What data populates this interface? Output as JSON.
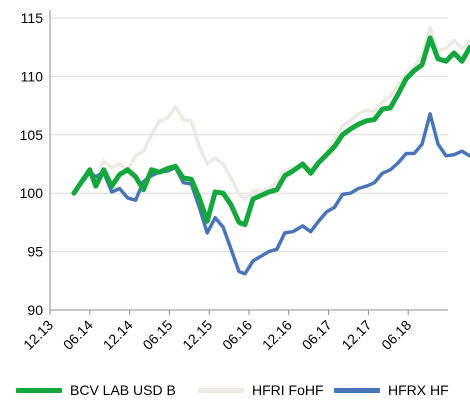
{
  "chart_data": {
    "type": "line",
    "x_tick_labels": [
      "12.13",
      "06.14",
      "12.14",
      "06.15",
      "12.15",
      "06.16",
      "12.16",
      "06.17",
      "12.17",
      "06.18"
    ],
    "yticks": [
      90,
      95,
      100,
      105,
      110,
      115
    ],
    "ylim": [
      90,
      115
    ],
    "grid": "horizontal",
    "legend_position": "bottom",
    "series": [
      {
        "name": "BCV LAB USD B",
        "color": "#14a83c",
        "points": [
          [
            0.6,
            100.0
          ],
          [
            0.8,
            101.0
          ],
          [
            1.0,
            102.0
          ],
          [
            1.15,
            100.6
          ],
          [
            1.35,
            102.0
          ],
          [
            1.55,
            100.6
          ],
          [
            1.75,
            101.6
          ],
          [
            1.95,
            102.0
          ],
          [
            2.15,
            101.4
          ],
          [
            2.35,
            100.3
          ],
          [
            2.55,
            102.0
          ],
          [
            2.75,
            101.8
          ],
          [
            2.95,
            102.1
          ],
          [
            3.15,
            102.3
          ],
          [
            3.35,
            101.3
          ],
          [
            3.55,
            101.2
          ],
          [
            3.75,
            99.6
          ],
          [
            3.95,
            97.6
          ],
          [
            4.15,
            100.1
          ],
          [
            4.35,
            100.0
          ],
          [
            4.55,
            99.0
          ],
          [
            4.75,
            97.5
          ],
          [
            4.9,
            97.3
          ],
          [
            5.1,
            99.5
          ],
          [
            5.3,
            99.8
          ],
          [
            5.5,
            100.1
          ],
          [
            5.7,
            100.3
          ],
          [
            5.9,
            101.5
          ],
          [
            6.1,
            101.9
          ],
          [
            6.35,
            102.5
          ],
          [
            6.55,
            101.7
          ],
          [
            6.75,
            102.6
          ],
          [
            6.95,
            103.3
          ],
          [
            7.15,
            104.0
          ],
          [
            7.35,
            105.0
          ],
          [
            7.55,
            105.5
          ],
          [
            7.75,
            105.9
          ],
          [
            7.95,
            106.2
          ],
          [
            8.15,
            106.3
          ],
          [
            8.35,
            107.2
          ],
          [
            8.55,
            107.3
          ],
          [
            8.75,
            108.5
          ],
          [
            8.95,
            109.8
          ],
          [
            9.15,
            110.5
          ],
          [
            9.35,
            111.0
          ],
          [
            9.55,
            113.3
          ],
          [
            9.75,
            111.5
          ],
          [
            9.95,
            111.3
          ],
          [
            10.15,
            112.0
          ],
          [
            10.35,
            111.3
          ],
          [
            10.55,
            112.5
          ]
        ]
      },
      {
        "name": "HFRI FoHF",
        "color": "#ebebe3",
        "points": [
          [
            0.6,
            100.0
          ],
          [
            0.8,
            101.0
          ],
          [
            1.0,
            101.8
          ],
          [
            1.15,
            101.2
          ],
          [
            1.35,
            102.8
          ],
          [
            1.55,
            102.2
          ],
          [
            1.75,
            102.5
          ],
          [
            1.95,
            102.0
          ],
          [
            2.15,
            103.2
          ],
          [
            2.35,
            103.6
          ],
          [
            2.55,
            105.0
          ],
          [
            2.75,
            106.2
          ],
          [
            2.95,
            106.4
          ],
          [
            3.15,
            107.4
          ],
          [
            3.35,
            106.3
          ],
          [
            3.55,
            106.2
          ],
          [
            3.75,
            104.0
          ],
          [
            3.95,
            102.5
          ],
          [
            4.15,
            103.0
          ],
          [
            4.35,
            102.5
          ],
          [
            4.55,
            101.3
          ],
          [
            4.75,
            99.9
          ],
          [
            4.9,
            99.5
          ],
          [
            5.1,
            100.2
          ],
          [
            5.3,
            100.2
          ],
          [
            5.5,
            100.4
          ],
          [
            5.7,
            101.0
          ],
          [
            5.9,
            101.9
          ],
          [
            6.1,
            102.2
          ],
          [
            6.35,
            102.2
          ],
          [
            6.55,
            102.2
          ],
          [
            6.75,
            102.6
          ],
          [
            6.95,
            103.5
          ],
          [
            7.15,
            104.6
          ],
          [
            7.35,
            105.8
          ],
          [
            7.55,
            106.2
          ],
          [
            7.75,
            106.8
          ],
          [
            7.95,
            107.1
          ],
          [
            8.15,
            107.0
          ],
          [
            8.35,
            107.8
          ],
          [
            8.55,
            108.3
          ],
          [
            8.75,
            109.3
          ],
          [
            8.95,
            110.2
          ],
          [
            9.15,
            110.8
          ],
          [
            9.35,
            111.8
          ],
          [
            9.55,
            114.2
          ],
          [
            9.75,
            112.2
          ],
          [
            9.95,
            112.4
          ],
          [
            10.15,
            113.1
          ],
          [
            10.35,
            112.4
          ],
          [
            10.55,
            113.0
          ]
        ]
      },
      {
        "name": "HFRX HF",
        "color": "#4a74b8",
        "points": [
          [
            0.6,
            100.0
          ],
          [
            0.8,
            100.9
          ],
          [
            1.0,
            101.8
          ],
          [
            1.15,
            101.4
          ],
          [
            1.35,
            101.8
          ],
          [
            1.55,
            100.1
          ],
          [
            1.75,
            100.4
          ],
          [
            1.95,
            99.6
          ],
          [
            2.15,
            99.4
          ],
          [
            2.35,
            101.0
          ],
          [
            2.55,
            101.5
          ],
          [
            2.75,
            101.8
          ],
          [
            2.95,
            101.9
          ],
          [
            3.15,
            102.2
          ],
          [
            3.35,
            100.9
          ],
          [
            3.55,
            100.8
          ],
          [
            3.75,
            98.8
          ],
          [
            3.95,
            96.6
          ],
          [
            4.15,
            97.9
          ],
          [
            4.35,
            97.1
          ],
          [
            4.55,
            95.2
          ],
          [
            4.75,
            93.3
          ],
          [
            4.9,
            93.1
          ],
          [
            5.1,
            94.2
          ],
          [
            5.3,
            94.6
          ],
          [
            5.5,
            95.0
          ],
          [
            5.7,
            95.2
          ],
          [
            5.9,
            96.6
          ],
          [
            6.1,
            96.7
          ],
          [
            6.35,
            97.2
          ],
          [
            6.55,
            96.7
          ],
          [
            6.75,
            97.6
          ],
          [
            6.95,
            98.4
          ],
          [
            7.15,
            98.8
          ],
          [
            7.35,
            99.9
          ],
          [
            7.55,
            100.0
          ],
          [
            7.75,
            100.4
          ],
          [
            7.95,
            100.6
          ],
          [
            8.15,
            100.9
          ],
          [
            8.35,
            101.7
          ],
          [
            8.55,
            102.0
          ],
          [
            8.75,
            102.6
          ],
          [
            8.95,
            103.4
          ],
          [
            9.15,
            103.4
          ],
          [
            9.35,
            104.2
          ],
          [
            9.55,
            106.8
          ],
          [
            9.75,
            104.2
          ],
          [
            9.95,
            103.2
          ],
          [
            10.15,
            103.3
          ],
          [
            10.35,
            103.6
          ],
          [
            10.55,
            103.2
          ]
        ]
      }
    ]
  }
}
